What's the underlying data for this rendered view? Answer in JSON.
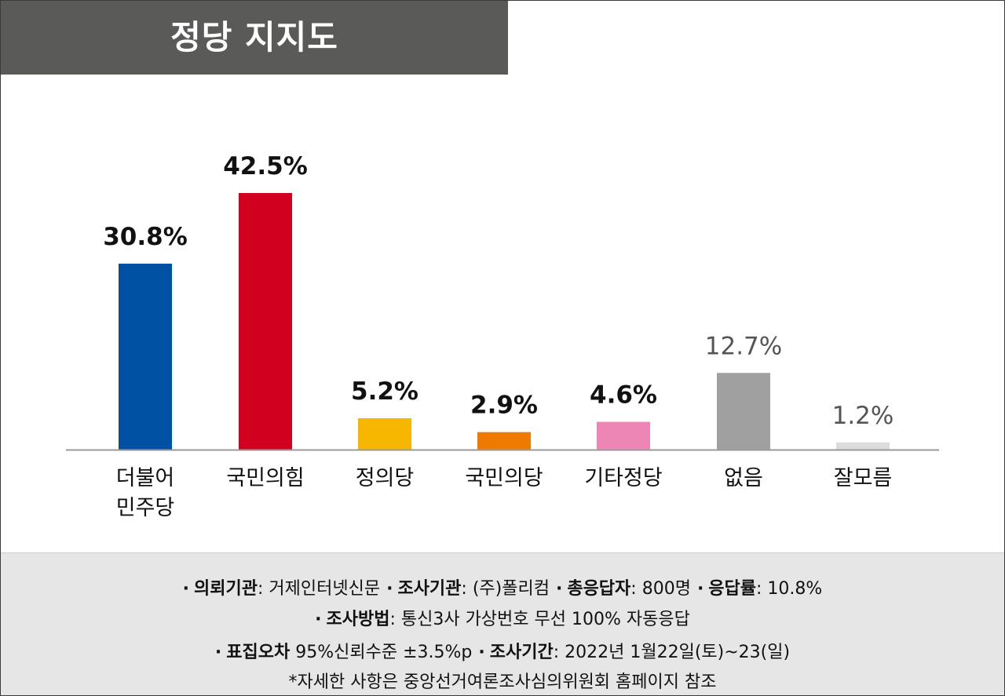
{
  "title": "정당 지지도",
  "chart_data": {
    "type": "bar",
    "categories": [
      [
        "더불어",
        "민주당"
      ],
      [
        "국민의힘"
      ],
      [
        "정의당"
      ],
      [
        "국민의당"
      ],
      [
        "기타정당"
      ],
      [
        "없음"
      ],
      [
        "잘모름"
      ]
    ],
    "values": [
      30.8,
      42.5,
      5.2,
      2.9,
      4.6,
      12.7,
      1.2
    ],
    "value_labels": [
      "30.8%",
      "42.5%",
      "5.2%",
      "2.9%",
      "4.6%",
      "12.7%",
      "1.2%"
    ],
    "colors": [
      "#0050a4",
      "#d1001f",
      "#f7b600",
      "#ee7a00",
      "#ee86b5",
      "#a0a0a0",
      "#dcdcdc"
    ],
    "label_weights": [
      "bold",
      "bold",
      "bold",
      "bold",
      "bold",
      "normal",
      "normal"
    ],
    "label_colors": [
      "#111111",
      "#111111",
      "#111111",
      "#111111",
      "#111111",
      "#555555",
      "#555555"
    ],
    "ylim": [
      0,
      42.5
    ],
    "grid": false,
    "baseline_color": "#9a9a9a"
  },
  "footer": {
    "line1": [
      {
        "key": "의뢰기관",
        "sep": ":",
        "value": " 거제인터넷신문"
      },
      {
        "key": "조사기관",
        "sep": ":",
        "value": " (주)폴리컴"
      },
      {
        "key": "총응답자",
        "sep": ":",
        "value": " 800명"
      },
      {
        "key": "응답률",
        "sep": ":",
        "value": " 10.8%"
      }
    ],
    "line2": [
      {
        "key": "조사방법",
        "sep": ":",
        "value": " 통신3사 가상번호 무선 100% 자동응답"
      }
    ],
    "line3": [
      {
        "key": "표집오차",
        "sep": "",
        "value": "  95%신뢰수준  ±3.5%p"
      },
      {
        "key": "조사기간",
        "sep": ":",
        "value": " 2022년 1월22일(토)~23(일)"
      }
    ],
    "note": "*자세한 사항은  중앙선거여론조사심의위원회 홈페이지 참조",
    "bullet": "·"
  }
}
